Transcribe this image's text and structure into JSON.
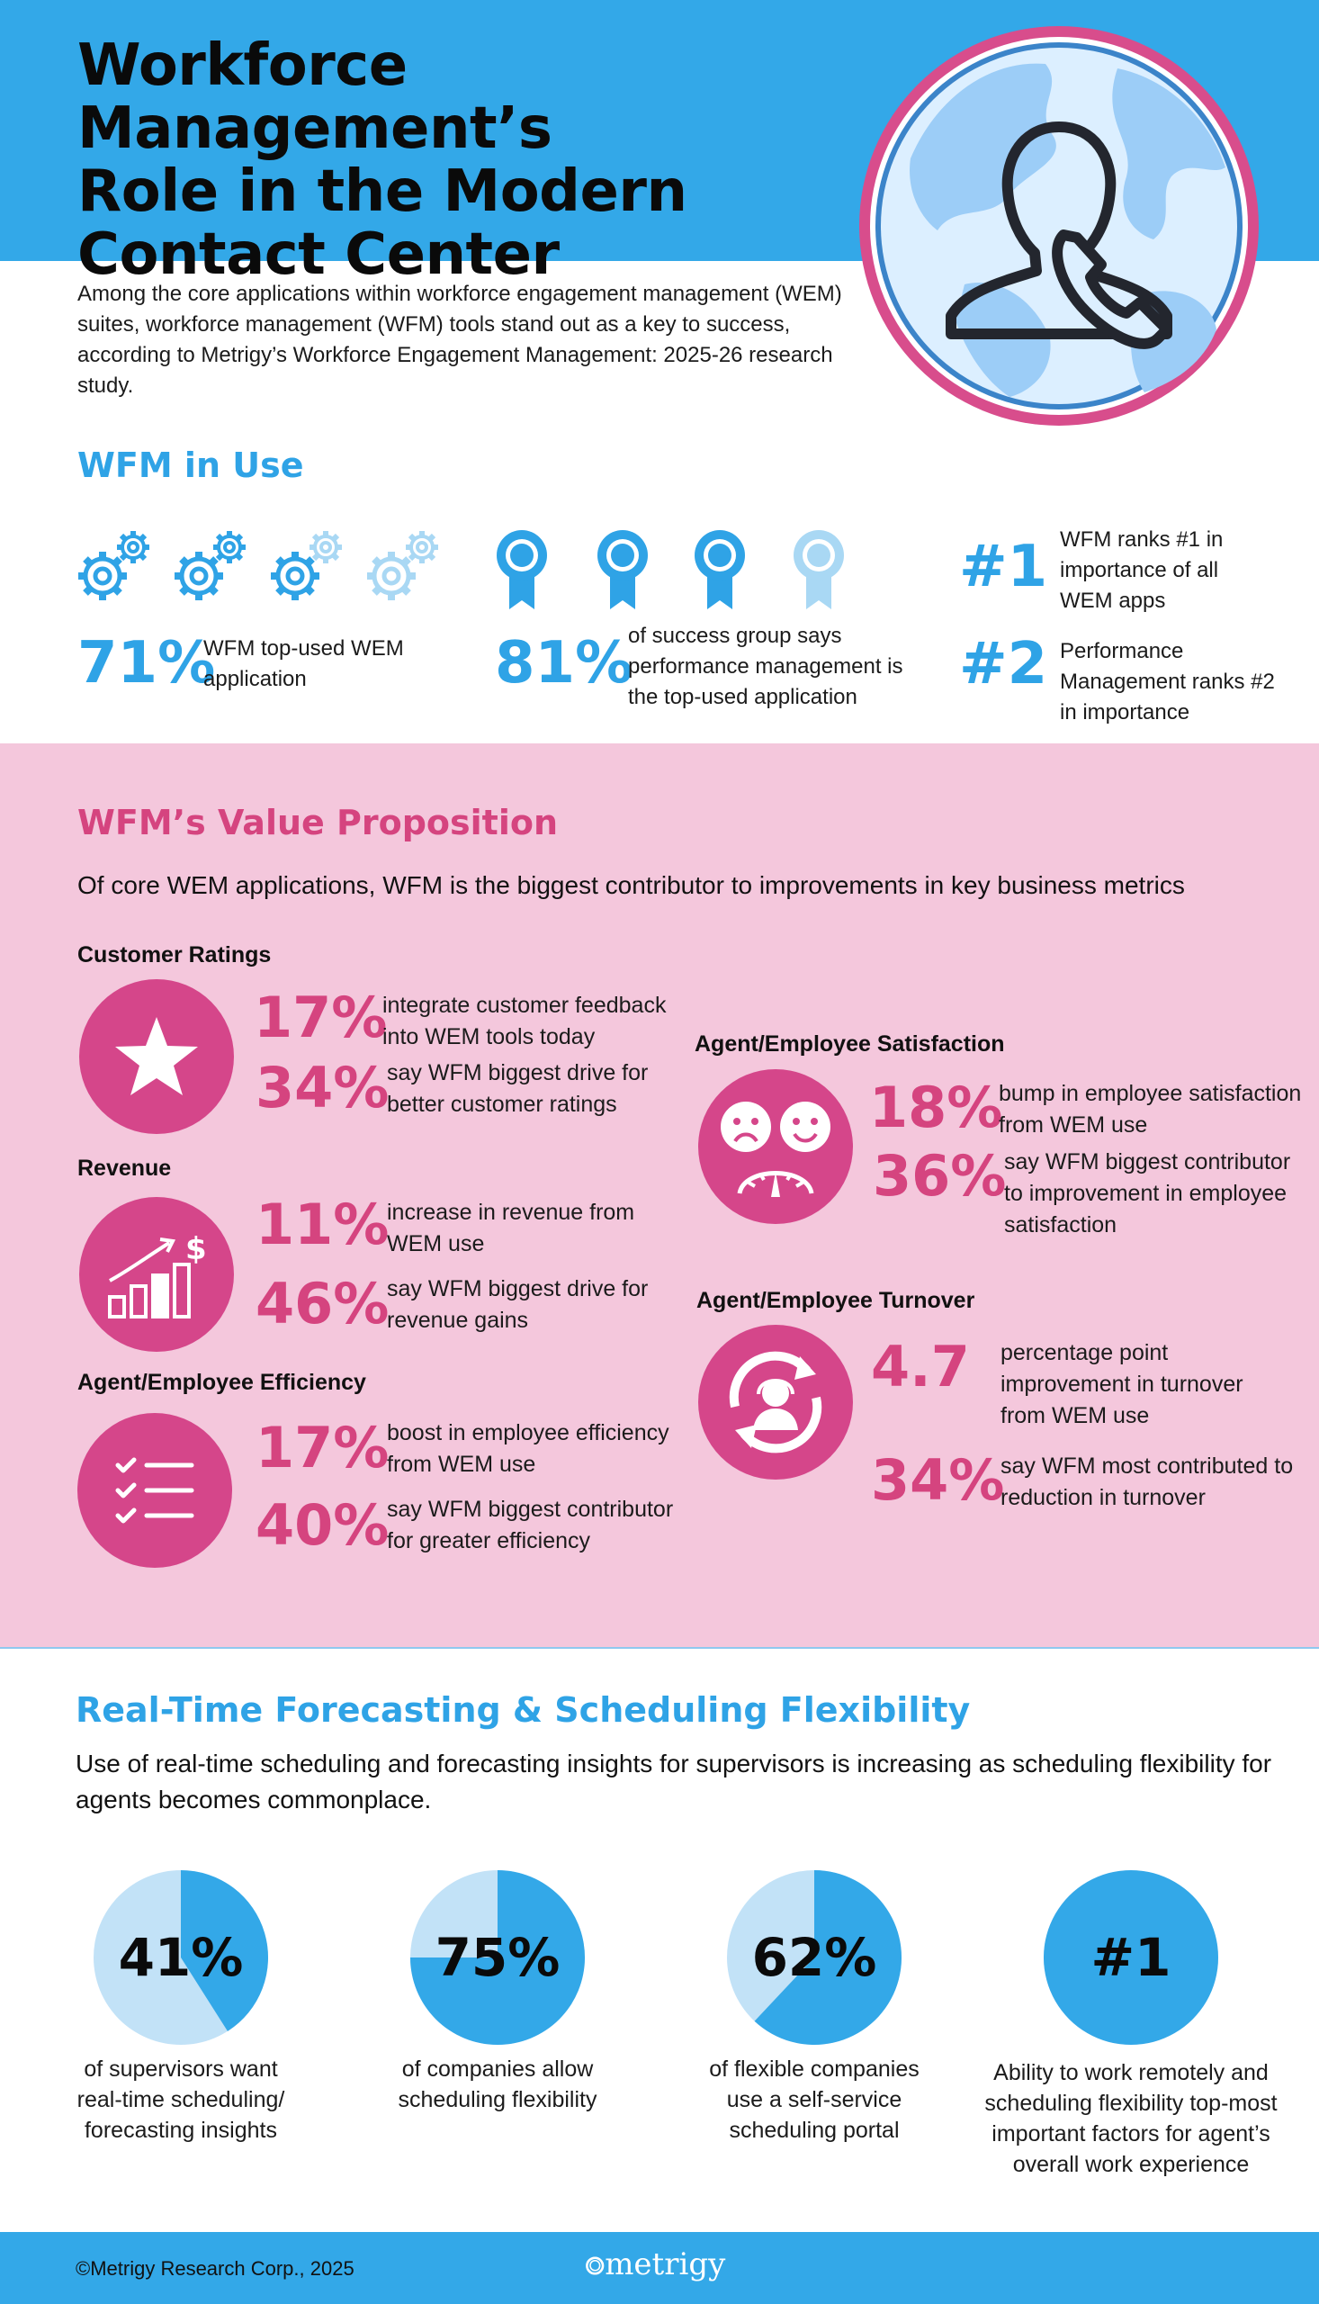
{
  "header": {
    "title_line1": "Workforce Management’s",
    "title_line2": "Role in the Modern",
    "title_line3": "Contact Center",
    "intro": "Among the core applications within workforce engagement management (WEM) suites, workforce management (WFM) tools stand out as a key to success, according to Metrigy’s Workforce Engagement Management: 2025-26 research study."
  },
  "wfm_in_use": {
    "title": "WFM in Use",
    "stat1": {
      "value": "71%",
      "text": "WFM top-used WEM application"
    },
    "stat2": {
      "value": "81%",
      "text": "of success group says performance management is the top-used application"
    },
    "rank1": {
      "value": "#1",
      "text": "WFM ranks #1 in importance of all WEM apps"
    },
    "rank2": {
      "value": "#2",
      "text": "Performance Management ranks #2 in importance"
    }
  },
  "value_prop": {
    "title": "WFM’s Value Proposition",
    "subtitle": "Of core WEM applications, WFM is the biggest contributor to improvements in key business metrics",
    "customer_ratings": {
      "heading": "Customer Ratings",
      "stat1": {
        "value": "17%",
        "text": "integrate customer feedback into WEM tools today"
      },
      "stat2": {
        "value": "34%",
        "text": "say WFM biggest drive for better customer ratings"
      }
    },
    "revenue": {
      "heading": "Revenue",
      "stat1": {
        "value": "11%",
        "text": "increase in revenue from WEM use"
      },
      "stat2": {
        "value": "46%",
        "text": "say WFM biggest drive for revenue gains"
      }
    },
    "efficiency": {
      "heading": "Agent/Employee Efficiency",
      "stat1": {
        "value": "17%",
        "text": "boost in employee efficiency from WEM use"
      },
      "stat2": {
        "value": "40%",
        "text": "say WFM biggest contributor for greater efficiency"
      }
    },
    "satisfaction": {
      "heading": "Agent/Employee Satisfaction",
      "stat1": {
        "value": "18%",
        "text": "bump in employee satisfaction from WEM use"
      },
      "stat2": {
        "value": "36%",
        "text": "say WFM biggest contributor to improvement in employee satisfaction"
      }
    },
    "turnover": {
      "heading": "Agent/Employee Turnover",
      "stat1": {
        "value": "4.7",
        "text": "percentage point improvement in turnover from WEM use"
      },
      "stat2": {
        "value": "34%",
        "text": "say WFM most contributed to reduction in turnover"
      }
    }
  },
  "realtime": {
    "title": "Real-Time Forecasting & Scheduling Flexibility",
    "subtitle": "Use of real-time scheduling and forecasting insights for supervisors is increasing as scheduling flexibility for agents becomes commonplace.",
    "pies": [
      {
        "label": "41%",
        "fraction": 0.41,
        "caption": "of supervisors want real-time scheduling/ forecasting insights"
      },
      {
        "label": "75%",
        "fraction": 0.75,
        "caption": "of companies allow scheduling flexibility"
      },
      {
        "label": "62%",
        "fraction": 0.62,
        "caption": "of flexible companies use a self-service scheduling portal"
      },
      {
        "label": "#1",
        "fraction": 1.0,
        "caption": "Ability to work remotely and scheduling flexibility top-most important factors for agent’s overall work experience"
      }
    ]
  },
  "footer": {
    "copyright": "©Metrigy Research Corp., 2025",
    "logo": "metrigy"
  },
  "colors": {
    "blue": "#33a8e8",
    "light_blue": "#c2e2f7",
    "pink": "#d5468a",
    "pink_bg": "#f4c7dc"
  }
}
